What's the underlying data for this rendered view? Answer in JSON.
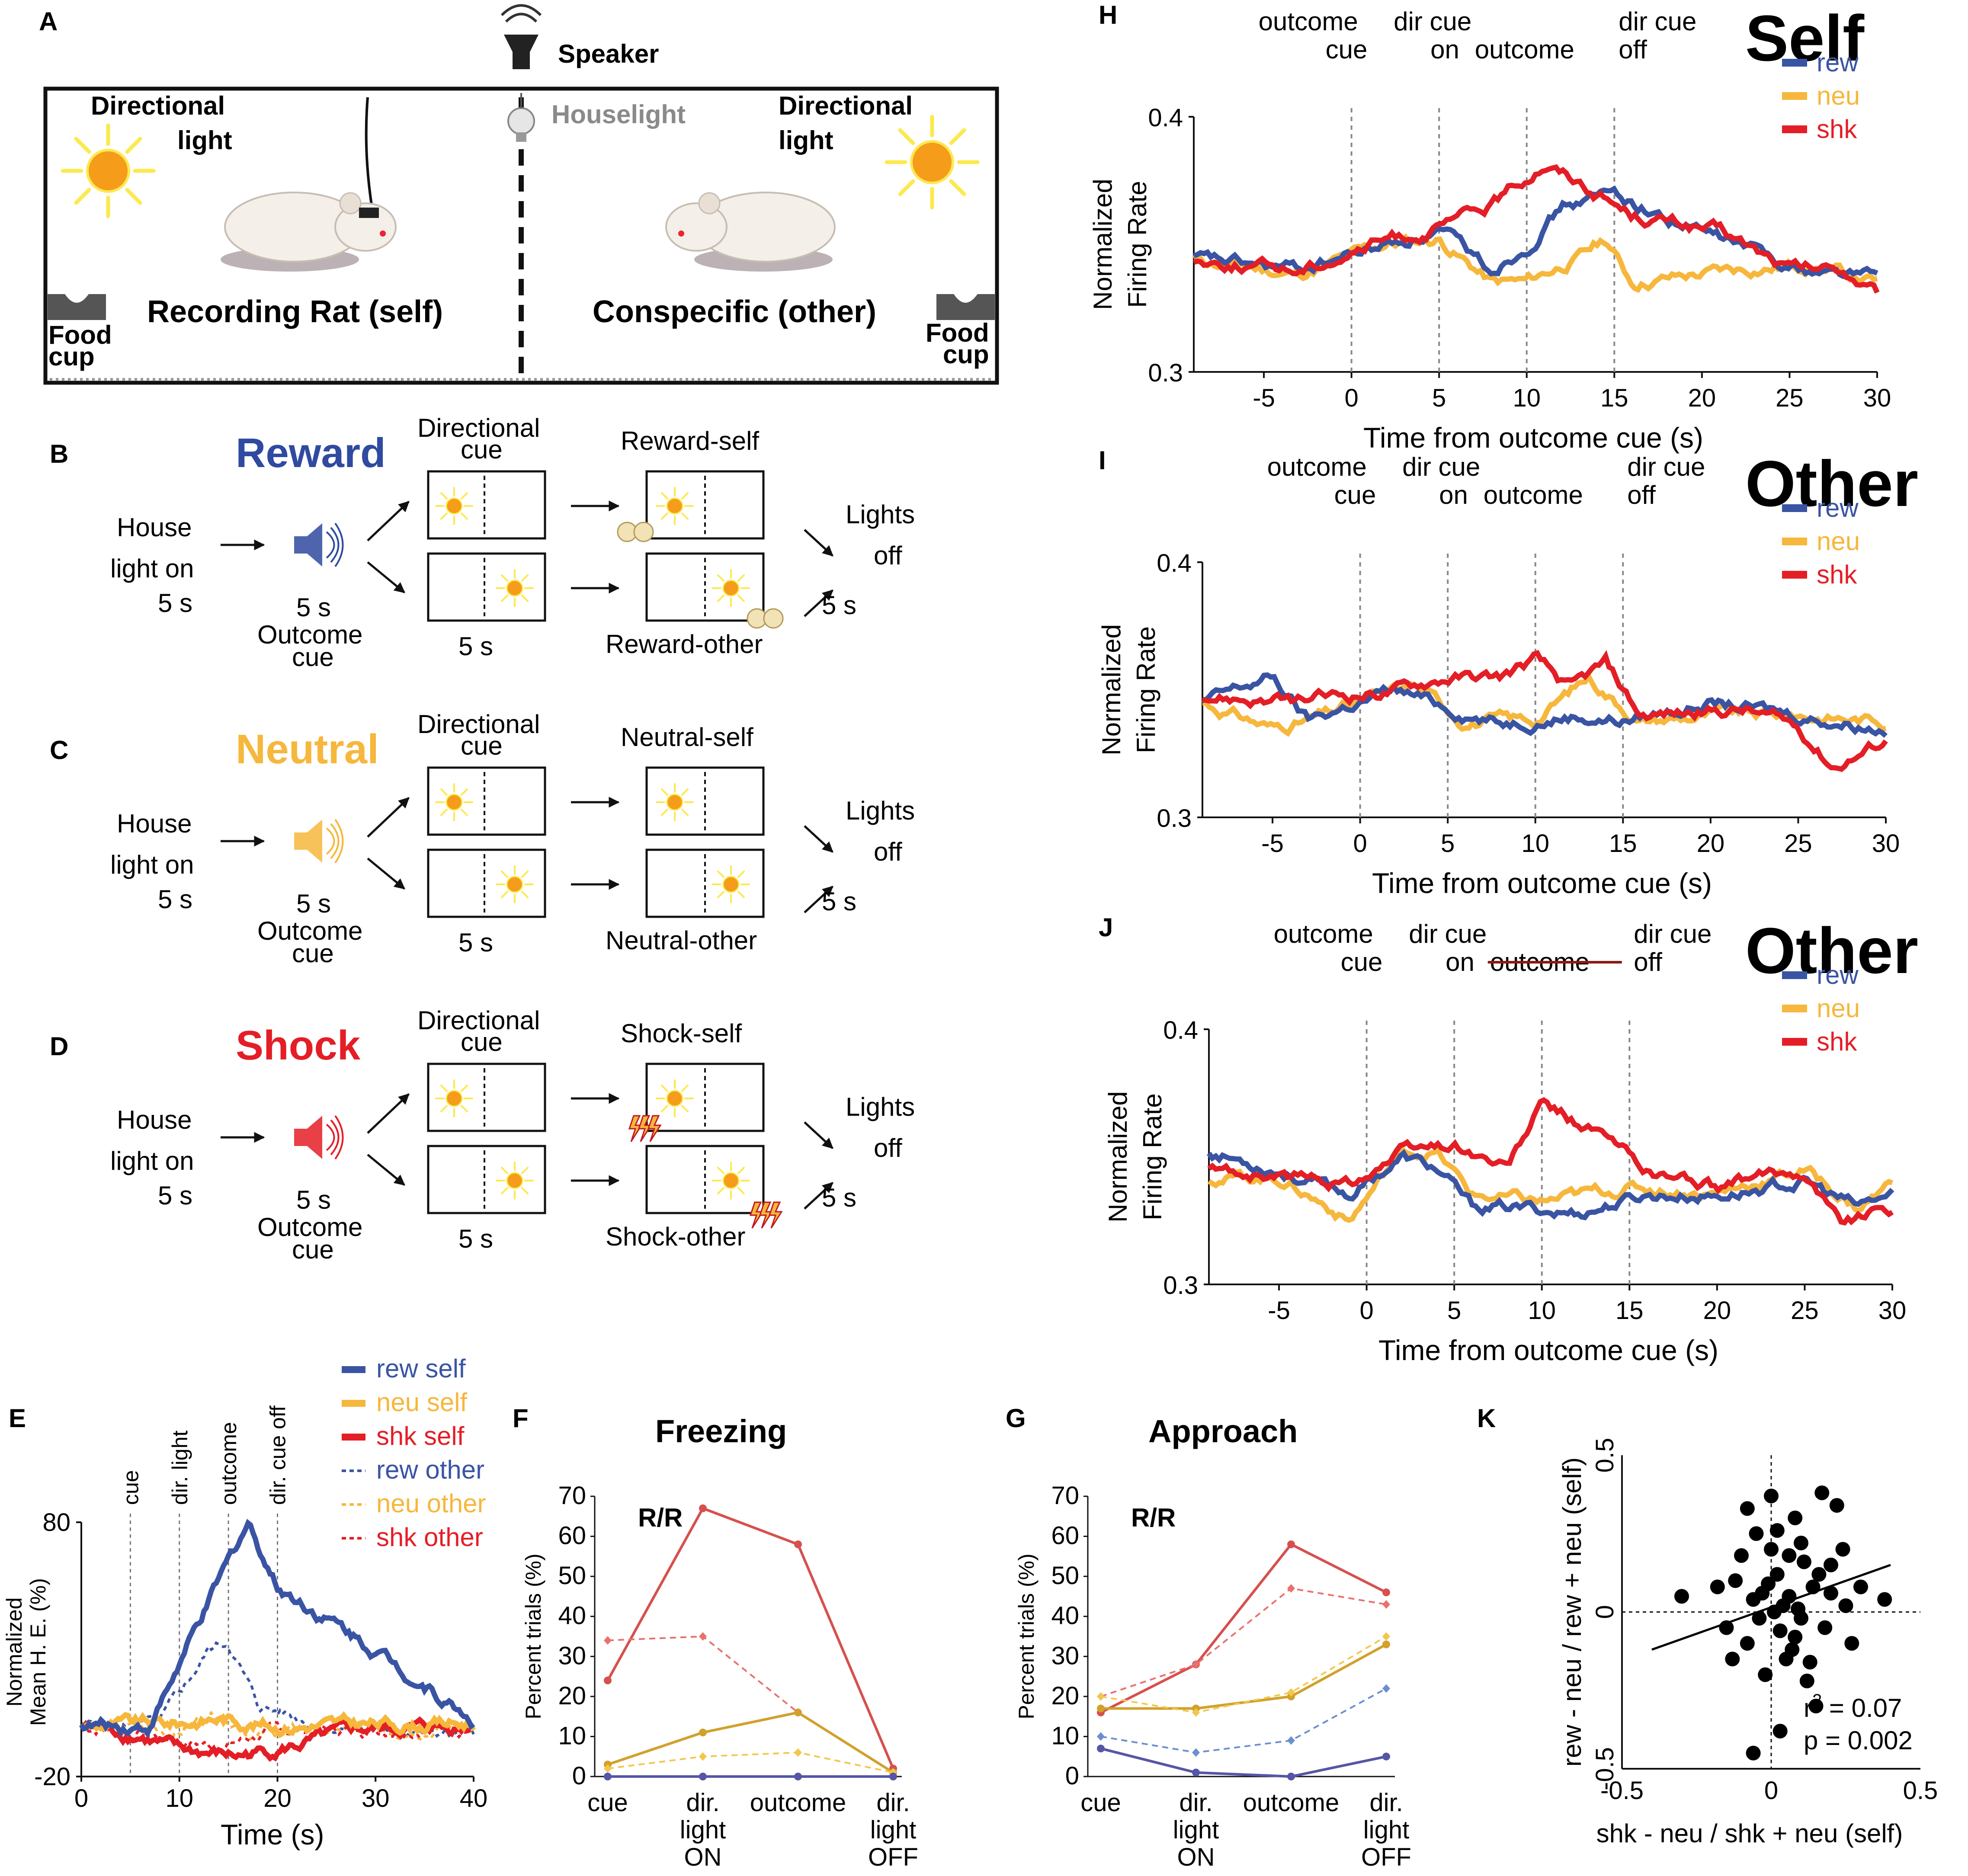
{
  "colors": {
    "rew": "#3a54a4",
    "neu": "#f6b73c",
    "shk": "#e41e26",
    "rew_f": "#5556a6",
    "neu_f": "#d9a82c",
    "shk_f": "#d6504d",
    "sun": "#f59c1a",
    "ray": "#fce94f"
  },
  "panelA": {
    "letter": "A",
    "speaker": "Speaker",
    "houselight": "Houselight",
    "dir_light_left": [
      "Directional",
      "light"
    ],
    "dir_light_right": [
      "Directional",
      "light"
    ],
    "self_label": "Recording Rat (self)",
    "other_label": "Conspecific (other)",
    "food_left": [
      "Food",
      "cup"
    ],
    "food_right": [
      "Food",
      "cup"
    ]
  },
  "protocol": {
    "house": [
      "House",
      "light on"
    ],
    "five_s": "5 s",
    "outcome_cue": [
      "Outcome",
      "cue"
    ],
    "dir_cue": [
      "Directional",
      "cue"
    ],
    "lights_off": [
      "Lights",
      "off"
    ],
    "rows": [
      {
        "letter": "B",
        "title": "Reward",
        "self": "Reward-self",
        "other": "Reward-other",
        "color": "#2f4aa0"
      },
      {
        "letter": "C",
        "title": "Neutral",
        "self": "Neutral-self",
        "other": "Neutral-other",
        "color": "#f6b73c"
      },
      {
        "letter": "D",
        "title": "Shock",
        "self": "Shock-self",
        "other": "Shock-other",
        "color": "#e41e26"
      }
    ]
  },
  "panelE": {
    "letter": "E",
    "ylabel": [
      "Normalized",
      "Mean H. E. (%)"
    ],
    "xlabel": "Time (s)",
    "yticks": [
      "80",
      "-20"
    ],
    "xticks": [
      "0",
      "10",
      "20",
      "30",
      "40"
    ],
    "events": [
      "cue",
      "dir. light",
      "outcome",
      "dir. cue off"
    ],
    "legend": [
      "rew self",
      "neu self",
      "shk self",
      "rew other",
      "neu other",
      "shk other"
    ]
  },
  "panelF": {
    "letter": "F",
    "title": "Freezing",
    "tag": "R/R",
    "ylabel": "Percent trials (%)"
  },
  "panelG": {
    "letter": "G",
    "title": "Approach",
    "tag": "R/R",
    "ylabel": "Percent trials (%)"
  },
  "fg_yticks": [
    "0",
    "10",
    "20",
    "30",
    "40",
    "50",
    "60",
    "70"
  ],
  "fg_x": [
    "cue",
    "dir.",
    "light",
    "ON",
    "outcome",
    "dir.",
    "light",
    "OFF"
  ],
  "neuron": {
    "ylabel": [
      "Normalized",
      "Firing Rate"
    ],
    "xlabel": "Time from outcome cue (s)",
    "yticks": [
      "0.4",
      "0.3"
    ],
    "xticks": [
      "-5",
      "0",
      "5",
      "10",
      "15",
      "20",
      "25",
      "30"
    ],
    "ev": [
      "outcome",
      "cue",
      "dir cue",
      "on",
      "outcome",
      "dir cue",
      "off"
    ],
    "legend": [
      "rew",
      "neu",
      "shk"
    ]
  },
  "panelH": {
    "letter": "H",
    "title": "Self"
  },
  "panelI": {
    "letter": "I",
    "title": "Other"
  },
  "panelJ": {
    "letter": "J",
    "title": "Other"
  },
  "panelK": {
    "letter": "K",
    "ylabel": "rew - neu / rew + neu (self)",
    "xlabel": "shk - neu / shk + neu (self)",
    "yticks": [
      "0.5",
      "0",
      "-0.5"
    ],
    "xticks": [
      "-0.5",
      "0",
      "0.5"
    ],
    "r2": "r",
    "r2b": "2",
    "r2c": " = 0.07",
    "p": "p = 0.002"
  },
  "chart_data": [
    {
      "type": "line",
      "title": "Freezing",
      "ylabel": "Percent trials (%)",
      "categories": [
        "cue",
        "dir. light ON",
        "outcome",
        "dir. light OFF"
      ],
      "ylim": [
        0,
        70
      ],
      "series": [
        {
          "name": "shk self",
          "values": [
            24,
            67,
            58,
            2
          ]
        },
        {
          "name": "shk other",
          "values": [
            34,
            35,
            16,
            1
          ]
        },
        {
          "name": "neu self",
          "values": [
            3,
            11,
            16,
            1
          ]
        },
        {
          "name": "neu other",
          "values": [
            2,
            5,
            6,
            1
          ]
        },
        {
          "name": "rew self",
          "values": [
            0,
            0,
            0,
            0
          ]
        }
      ]
    },
    {
      "type": "line",
      "title": "Approach",
      "ylabel": "Percent trials (%)",
      "categories": [
        "cue",
        "dir. light ON",
        "outcome",
        "dir. light OFF"
      ],
      "ylim": [
        0,
        70
      ],
      "series": [
        {
          "name": "shk self",
          "values": [
            16,
            28,
            58,
            46
          ]
        },
        {
          "name": "shk other",
          "values": [
            20,
            28,
            47,
            43
          ]
        },
        {
          "name": "neu self",
          "values": [
            17,
            17,
            20,
            33
          ]
        },
        {
          "name": "neu other",
          "values": [
            20,
            16,
            21,
            35
          ]
        },
        {
          "name": "rew other",
          "values": [
            10,
            6,
            9,
            22
          ]
        },
        {
          "name": "rew self",
          "values": [
            7,
            1,
            0,
            5
          ]
        }
      ]
    },
    {
      "type": "scatter",
      "xlabel": "shk - neu / shk + neu (self)",
      "ylabel": "rew - neu / rew + neu (self)",
      "xlim": [
        -0.5,
        0.5
      ],
      "ylim": [
        -0.5,
        0.5
      ],
      "r2": 0.07,
      "p": 0.002,
      "fit": {
        "x": [
          -0.4,
          0.4
        ],
        "y": [
          -0.12,
          0.15
        ]
      },
      "points": [
        [
          0.38,
          0.04
        ],
        [
          -0.3,
          0.05
        ],
        [
          0.0,
          0.37
        ],
        [
          0.17,
          0.38
        ],
        [
          -0.08,
          0.33
        ],
        [
          0.22,
          0.34
        ],
        [
          0.3,
          0.08
        ],
        [
          -0.06,
          -0.45
        ],
        [
          0.03,
          -0.38
        ],
        [
          0.15,
          -0.3
        ],
        [
          0.27,
          -0.1
        ],
        [
          0.2,
          0.15
        ],
        [
          0.1,
          0.22
        ],
        [
          -0.12,
          0.1
        ],
        [
          -0.15,
          -0.05
        ],
        [
          0.05,
          -0.15
        ],
        [
          0.12,
          -0.22
        ],
        [
          0.0,
          0.2
        ],
        [
          0.06,
          0.05
        ],
        [
          -0.04,
          -0.02
        ],
        [
          0.08,
          -0.08
        ],
        [
          -0.1,
          0.18
        ],
        [
          0.14,
          0.08
        ],
        [
          0.02,
          0.12
        ],
        [
          -0.02,
          -0.2
        ],
        [
          0.18,
          -0.05
        ],
        [
          0.24,
          0.2
        ],
        [
          -0.18,
          0.08
        ],
        [
          0.08,
          0.3
        ],
        [
          -0.05,
          0.25
        ],
        [
          0.1,
          -0.02
        ],
        [
          0.01,
          0.0
        ],
        [
          0.04,
          0.02
        ],
        [
          -0.03,
          0.06
        ],
        [
          0.07,
          -0.12
        ],
        [
          -0.08,
          -0.1
        ],
        [
          0.16,
          0.12
        ],
        [
          0.03,
          -0.06
        ],
        [
          -0.01,
          0.09
        ],
        [
          0.11,
          0.16
        ],
        [
          0.2,
          0.06
        ],
        [
          -0.13,
          -0.15
        ],
        [
          0.06,
          0.18
        ],
        [
          0.09,
          0.01
        ],
        [
          -0.06,
          0.04
        ],
        [
          0.13,
          -0.16
        ],
        [
          0.02,
          0.26
        ],
        [
          0.25,
          0.02
        ]
      ]
    }
  ]
}
